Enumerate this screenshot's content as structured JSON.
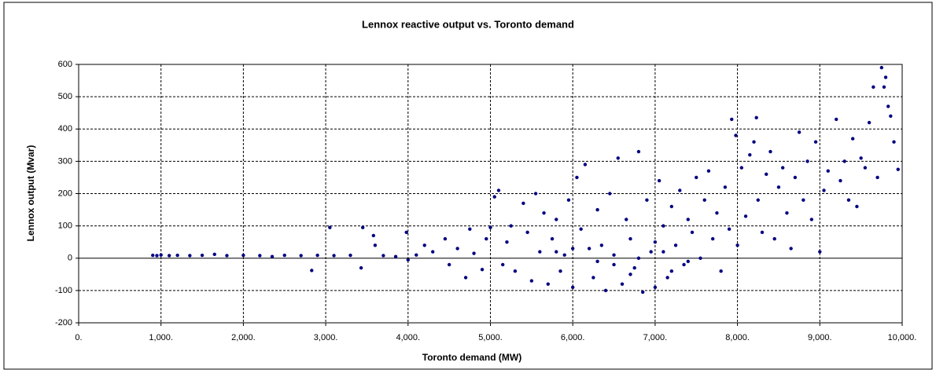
{
  "chart_data": {
    "type": "scatter",
    "title": "Lennox reactive output vs. Toronto demand",
    "x_label": "Toronto demand (MW)",
    "y_label": "Lennox output (Mvar)",
    "color": "#000080",
    "grid": true,
    "xlim": [
      0,
      10000
    ],
    "xticks": [
      {
        "value": 0,
        "label": "0."
      },
      {
        "value": 1000,
        "label": "1,000."
      },
      {
        "value": 2000,
        "label": "2,000."
      },
      {
        "value": 3000,
        "label": "3,000."
      },
      {
        "value": 4000,
        "label": "4,000."
      },
      {
        "value": 5000,
        "label": "5,000."
      },
      {
        "value": 6000,
        "label": "6,000."
      },
      {
        "value": 7000,
        "label": "7,000."
      },
      {
        "value": 8000,
        "label": "8,000."
      },
      {
        "value": 9000,
        "label": "9,000."
      },
      {
        "value": 10000,
        "label": "10,000."
      }
    ],
    "ylim": [
      -200,
      600
    ],
    "yticks": [
      -200,
      -100,
      0,
      100,
      200,
      300,
      400,
      500,
      600
    ],
    "x": [
      900,
      950,
      1000,
      1100,
      1200,
      1350,
      1500,
      1650,
      1800,
      2000,
      2200,
      2350,
      2500,
      2700,
      2830,
      2900,
      3050,
      3100,
      3300,
      3430,
      3450,
      3580,
      3600,
      3700,
      3850,
      3980,
      4000,
      4100,
      4200,
      4300,
      4450,
      4500,
      4600,
      4700,
      4750,
      4800,
      4900,
      4950,
      5000,
      5050,
      5100,
      5150,
      5200,
      5250,
      5300,
      5400,
      5450,
      5500,
      5550,
      5600,
      5650,
      5700,
      5750,
      5800,
      5850,
      5900,
      5950,
      6000,
      6050,
      6100,
      6150,
      6200,
      6250,
      6300,
      6350,
      6400,
      6450,
      6500,
      6550,
      6600,
      6650,
      6700,
      6750,
      6800,
      6850,
      6900,
      6950,
      7000,
      7050,
      7100,
      7150,
      7200,
      7250,
      7300,
      7350,
      7400,
      7450,
      7500,
      7550,
      7600,
      7650,
      7700,
      7750,
      7800,
      7850,
      7900,
      7930,
      7980,
      8000,
      8050,
      8100,
      8150,
      8200,
      8230,
      8250,
      8300,
      8350,
      8400,
      8450,
      8500,
      8550,
      8600,
      8650,
      8700,
      8750,
      8800,
      8850,
      8900,
      8950,
      9000,
      9050,
      9100,
      9200,
      9250,
      9300,
      9350,
      9400,
      9450,
      9500,
      9550,
      9600,
      9650,
      9700,
      9750,
      9780,
      9800,
      9830,
      9860,
      9900,
      9950,
      6000,
      6500,
      7000,
      7200,
      6800,
      6700,
      7100,
      7400,
      6300,
      5800
    ],
    "y": [
      9,
      8,
      10,
      8,
      9,
      8,
      9,
      12,
      8,
      9,
      8,
      5,
      9,
      8,
      -38,
      9,
      95,
      8,
      9,
      -30,
      95,
      70,
      40,
      8,
      5,
      80,
      -5,
      10,
      40,
      20,
      60,
      -20,
      30,
      -60,
      90,
      15,
      -35,
      60,
      95,
      190,
      210,
      -20,
      50,
      100,
      -40,
      170,
      80,
      -70,
      200,
      20,
      140,
      -80,
      60,
      120,
      -40,
      10,
      180,
      -90,
      250,
      90,
      290,
      30,
      -60,
      150,
      40,
      -100,
      200,
      10,
      310,
      -80,
      120,
      60,
      -30,
      330,
      -105,
      180,
      20,
      -90,
      240,
      100,
      -60,
      160,
      40,
      210,
      -20,
      120,
      80,
      250,
      0,
      180,
      270,
      60,
      140,
      -40,
      220,
      90,
      430,
      380,
      40,
      280,
      130,
      320,
      360,
      435,
      180,
      80,
      260,
      330,
      60,
      220,
      280,
      140,
      30,
      250,
      390,
      180,
      300,
      120,
      360,
      20,
      210,
      270,
      430,
      240,
      300,
      180,
      370,
      160,
      310,
      280,
      420,
      530,
      250,
      590,
      530,
      560,
      470,
      440,
      360,
      275,
      30,
      -20,
      50,
      -40,
      0,
      -50,
      20,
      -10,
      -10,
      20
    ]
  }
}
